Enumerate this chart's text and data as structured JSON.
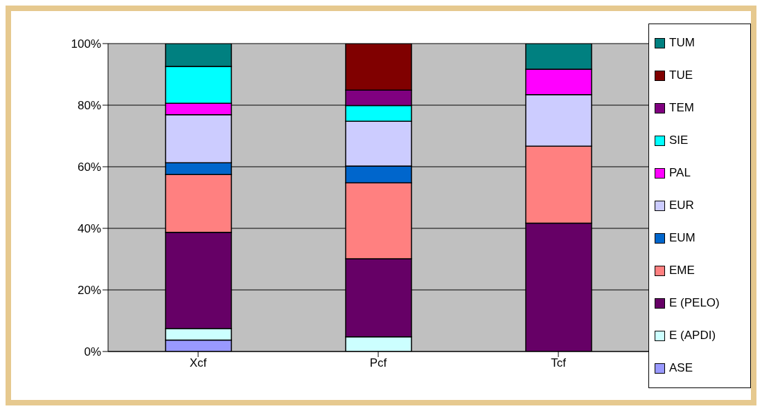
{
  "chart_data": {
    "type": "bar",
    "stacked": true,
    "categories": [
      "Xcf",
      "Pcf",
      "Tcf"
    ],
    "series": [
      {
        "name": "ASE",
        "color": "#9999ff",
        "values": [
          3.7,
          0,
          0
        ]
      },
      {
        "name": "E (APDI)",
        "color": "#ccffff",
        "values": [
          3.8,
          4.8,
          0
        ]
      },
      {
        "name": "E (PELO)",
        "color": "#660066",
        "values": [
          31.2,
          25.3,
          41.7
        ]
      },
      {
        "name": "EME",
        "color": "#ff8080",
        "values": [
          18.8,
          24.7,
          25
        ]
      },
      {
        "name": "EUM",
        "color": "#0066cc",
        "values": [
          3.8,
          5.4,
          0
        ]
      },
      {
        "name": "EUR",
        "color": "#ccccff",
        "values": [
          15.6,
          14.6,
          16.7
        ]
      },
      {
        "name": "PAL",
        "color": "#ff00ff",
        "values": [
          3.7,
          0,
          8.3
        ]
      },
      {
        "name": "SIE",
        "color": "#00ffff",
        "values": [
          12,
          5.1,
          0
        ]
      },
      {
        "name": "TEM",
        "color": "#800080",
        "values": [
          0,
          5,
          0
        ]
      },
      {
        "name": "TUE",
        "color": "#800000",
        "values": [
          0,
          15.1,
          0
        ]
      },
      {
        "name": "TUM",
        "color": "#008080",
        "values": [
          7.4,
          0,
          8.3
        ]
      }
    ],
    "ylim": [
      0,
      100
    ],
    "yticks": [
      {
        "value": 0,
        "label": "0%"
      },
      {
        "value": 20,
        "label": "20%"
      },
      {
        "value": 40,
        "label": "40%"
      },
      {
        "value": 60,
        "label": "60%"
      },
      {
        "value": 80,
        "label": "80%"
      },
      {
        "value": 100,
        "label": "100%"
      }
    ],
    "grid": "y",
    "legend": "right"
  }
}
